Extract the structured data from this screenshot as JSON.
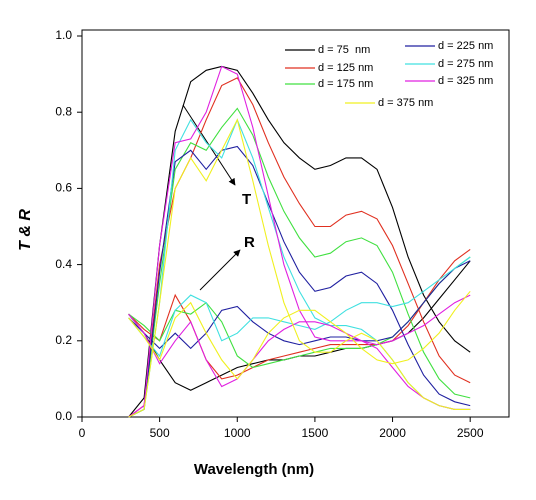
{
  "chart_data": {
    "type": "line",
    "x_label": "Wavelength (nm)",
    "y_label": "T & R",
    "annotations": [
      "T",
      "R"
    ],
    "x": [
      300,
      400,
      500,
      600,
      700,
      800,
      900,
      1000,
      1100,
      1200,
      1300,
      1400,
      1500,
      1600,
      1700,
      1800,
      1900,
      2000,
      2100,
      2200,
      2300,
      2400,
      2500
    ],
    "series": [
      {
        "name": "d = 75  nm",
        "color": "#000000",
        "values": [
          0,
          0.05,
          0.45,
          0.75,
          0.88,
          0.91,
          0.92,
          0.91,
          0.85,
          0.78,
          0.72,
          0.68,
          0.65,
          0.66,
          0.68,
          0.68,
          0.65,
          0.55,
          0.42,
          0.32,
          0.25,
          0.2,
          0.17
        ],
        "r_values": [
          0.27,
          0.22,
          0.15,
          0.09,
          0.07,
          0.09,
          0.11,
          0.13,
          0.14,
          0.15,
          0.15,
          0.16,
          0.16,
          0.17,
          0.18,
          0.18,
          0.19,
          0.2,
          0.22,
          0.26,
          0.31,
          0.36,
          0.41
        ]
      },
      {
        "name": "d = 125 nm",
        "color": "#e03020",
        "values": [
          0,
          0.03,
          0.4,
          0.6,
          0.68,
          0.78,
          0.87,
          0.89,
          0.82,
          0.72,
          0.63,
          0.56,
          0.5,
          0.5,
          0.53,
          0.54,
          0.52,
          0.45,
          0.35,
          0.25,
          0.16,
          0.11,
          0.09
        ],
        "r_values": [
          0.27,
          0.23,
          0.2,
          0.32,
          0.25,
          0.15,
          0.1,
          0.11,
          0.13,
          0.15,
          0.16,
          0.17,
          0.18,
          0.19,
          0.19,
          0.19,
          0.19,
          0.2,
          0.24,
          0.3,
          0.36,
          0.41,
          0.44
        ]
      },
      {
        "name": "d = 175 nm",
        "color": "#40e040",
        "values": [
          0,
          0.02,
          0.35,
          0.65,
          0.72,
          0.7,
          0.76,
          0.81,
          0.74,
          0.63,
          0.54,
          0.47,
          0.42,
          0.43,
          0.46,
          0.47,
          0.45,
          0.38,
          0.27,
          0.17,
          0.1,
          0.06,
          0.05
        ],
        "r_values": [
          0.27,
          0.24,
          0.2,
          0.28,
          0.27,
          0.3,
          0.25,
          0.16,
          0.13,
          0.14,
          0.15,
          0.16,
          0.17,
          0.18,
          0.18,
          0.18,
          0.19,
          0.21,
          0.25,
          0.3,
          0.35,
          0.39,
          0.42
        ]
      },
      {
        "name": "d = 225 nm",
        "color": "#2020a0",
        "values": [
          0,
          0.02,
          0.38,
          0.67,
          0.7,
          0.65,
          0.7,
          0.71,
          0.66,
          0.56,
          0.46,
          0.38,
          0.33,
          0.34,
          0.37,
          0.38,
          0.35,
          0.28,
          0.19,
          0.11,
          0.06,
          0.04,
          0.03
        ],
        "r_values": [
          0.26,
          0.22,
          0.18,
          0.22,
          0.18,
          0.22,
          0.28,
          0.29,
          0.25,
          0.22,
          0.2,
          0.19,
          0.2,
          0.21,
          0.21,
          0.2,
          0.2,
          0.21,
          0.25,
          0.3,
          0.35,
          0.39,
          0.41
        ]
      },
      {
        "name": "d = 275 nm",
        "color": "#40e0e0",
        "values": [
          0,
          0.02,
          0.3,
          0.7,
          0.78,
          0.72,
          0.68,
          0.78,
          0.68,
          0.55,
          0.42,
          0.33,
          0.26,
          0.24,
          0.24,
          0.23,
          0.2,
          0.15,
          0.09,
          0.05,
          0.03,
          0.02,
          0.02
        ],
        "r_values": [
          0.26,
          0.21,
          0.16,
          0.28,
          0.32,
          0.3,
          0.2,
          0.22,
          0.26,
          0.26,
          0.25,
          0.24,
          0.23,
          0.25,
          0.28,
          0.3,
          0.3,
          0.29,
          0.3,
          0.33,
          0.36,
          0.39,
          0.42
        ]
      },
      {
        "name": "d = 325 nm",
        "color": "#e020e0",
        "values": [
          0,
          0.03,
          0.45,
          0.72,
          0.73,
          0.8,
          0.92,
          0.9,
          0.76,
          0.58,
          0.4,
          0.28,
          0.21,
          0.2,
          0.2,
          0.2,
          0.18,
          0.13,
          0.08,
          0.05,
          0.03,
          0.02,
          0.02
        ],
        "r_values": [
          0.27,
          0.22,
          0.14,
          0.2,
          0.25,
          0.15,
          0.08,
          0.1,
          0.15,
          0.2,
          0.23,
          0.25,
          0.25,
          0.24,
          0.22,
          0.2,
          0.19,
          0.2,
          0.22,
          0.24,
          0.27,
          0.3,
          0.32
        ]
      },
      {
        "name": "d = 375 nm",
        "color": "#f0f020",
        "values": [
          0,
          0.02,
          0.3,
          0.6,
          0.68,
          0.62,
          0.7,
          0.78,
          0.62,
          0.45,
          0.3,
          0.2,
          0.17,
          0.17,
          0.2,
          0.22,
          0.2,
          0.15,
          0.09,
          0.05,
          0.03,
          0.02,
          0.02
        ],
        "r_values": [
          0.26,
          0.21,
          0.15,
          0.26,
          0.3,
          0.22,
          0.15,
          0.1,
          0.15,
          0.22,
          0.26,
          0.28,
          0.28,
          0.25,
          0.22,
          0.18,
          0.15,
          0.14,
          0.15,
          0.18,
          0.22,
          0.28,
          0.33
        ]
      }
    ],
    "xlim": [
      0,
      2750
    ],
    "xticks": [
      0,
      500,
      1000,
      1500,
      2000,
      2500
    ],
    "ylim": [
      0,
      1
    ],
    "yticks": [
      {
        "value": 0,
        "label": "0.0"
      },
      {
        "value": 0.2,
        "label": "0.2"
      },
      {
        "value": 0.4,
        "label": "0.4"
      },
      {
        "value": 0.6,
        "label": "0.6"
      },
      {
        "value": 0.8,
        "label": "0.8"
      },
      {
        "value": 1,
        "label": "1.0"
      }
    ],
    "grid": false
  }
}
